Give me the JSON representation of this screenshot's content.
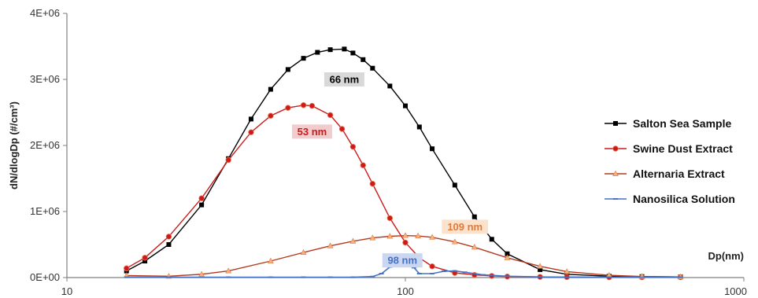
{
  "chart_data": {
    "type": "line",
    "xscale": "log",
    "xlim": [
      10,
      1000
    ],
    "ylim": [
      0,
      4000000
    ],
    "x_tick_labels": [
      "10",
      "100",
      "1000"
    ],
    "y_tick_labels": [
      "0E+00",
      "1E+06",
      "2E+06",
      "3E+06",
      "4E+06"
    ],
    "xlabel": "Dp(nm)",
    "ylabel": "dN/dlogDp (#/cm³)",
    "legend_position": "right",
    "series": [
      {
        "name": "Salton Sea Sample",
        "color": "#000000",
        "marker": "square",
        "x": [
          15,
          17,
          20,
          25,
          30,
          35,
          40,
          45,
          50,
          55,
          60,
          66,
          70,
          75,
          80,
          90,
          100,
          110,
          120,
          140,
          160,
          180,
          200,
          250,
          300,
          400,
          500,
          650
        ],
        "y": [
          100000,
          250000,
          500000,
          1100000,
          1800000,
          2400000,
          2850000,
          3150000,
          3320000,
          3410000,
          3450000,
          3460000,
          3400000,
          3300000,
          3170000,
          2900000,
          2600000,
          2280000,
          1950000,
          1400000,
          920000,
          580000,
          360000,
          120000,
          50000,
          20000,
          15000,
          10000
        ]
      },
      {
        "name": "Swine Dust Extract",
        "color": "#cc1a1a",
        "marker": "circle",
        "x": [
          15,
          17,
          20,
          25,
          30,
          35,
          40,
          45,
          50,
          53,
          60,
          65,
          70,
          75,
          80,
          90,
          100,
          110,
          120,
          140,
          160,
          180,
          200,
          250,
          300,
          400,
          500,
          650
        ],
        "y": [
          140000,
          300000,
          620000,
          1200000,
          1780000,
          2200000,
          2450000,
          2570000,
          2610000,
          2600000,
          2460000,
          2250000,
          1980000,
          1700000,
          1420000,
          900000,
          530000,
          300000,
          170000,
          70000,
          40000,
          25000,
          15000,
          10000,
          8000,
          5000,
          5000,
          5000
        ]
      },
      {
        "name": "Alternaria Extract",
        "color": "#b33a1f",
        "marker": "triangle",
        "x": [
          15,
          20,
          25,
          30,
          40,
          50,
          60,
          70,
          80,
          90,
          100,
          109,
          120,
          140,
          160,
          200,
          250,
          300,
          400,
          500,
          650
        ],
        "y": [
          30000,
          20000,
          50000,
          100000,
          250000,
          380000,
          480000,
          550000,
          600000,
          625000,
          635000,
          630000,
          610000,
          540000,
          460000,
          300000,
          170000,
          90000,
          35000,
          15000,
          10000
        ]
      },
      {
        "name": "Nanosilica Solution",
        "color": "#4472c4",
        "marker": "dash",
        "x": [
          15,
          20,
          30,
          40,
          50,
          60,
          70,
          80,
          85,
          90,
          95,
          98,
          102,
          106,
          110,
          120,
          130,
          140,
          150,
          170,
          200,
          250,
          300,
          400,
          650
        ],
        "y": [
          5000,
          5000,
          5000,
          5000,
          5000,
          5000,
          5000,
          15000,
          60000,
          160000,
          250000,
          280000,
          250000,
          150000,
          60000,
          60000,
          95000,
          100000,
          80000,
          40000,
          20000,
          10000,
          5000,
          5000,
          5000
        ]
      }
    ],
    "annotations": [
      {
        "text": "66 nm",
        "x": 66,
        "y": 3000000,
        "bg": "#d9d9d9",
        "color": "#000000"
      },
      {
        "text": "53 nm",
        "x": 53,
        "y": 2210000,
        "bg": "#f2cccc",
        "color": "#cc1a1a"
      },
      {
        "text": "109 nm",
        "x": 150,
        "y": 770000,
        "bg": "#fbe2cc",
        "color": "#e07b39"
      },
      {
        "text": "98 nm",
        "x": 98,
        "y": 260000,
        "bg": "#cbd7f0",
        "color": "#4472c4"
      }
    ]
  }
}
